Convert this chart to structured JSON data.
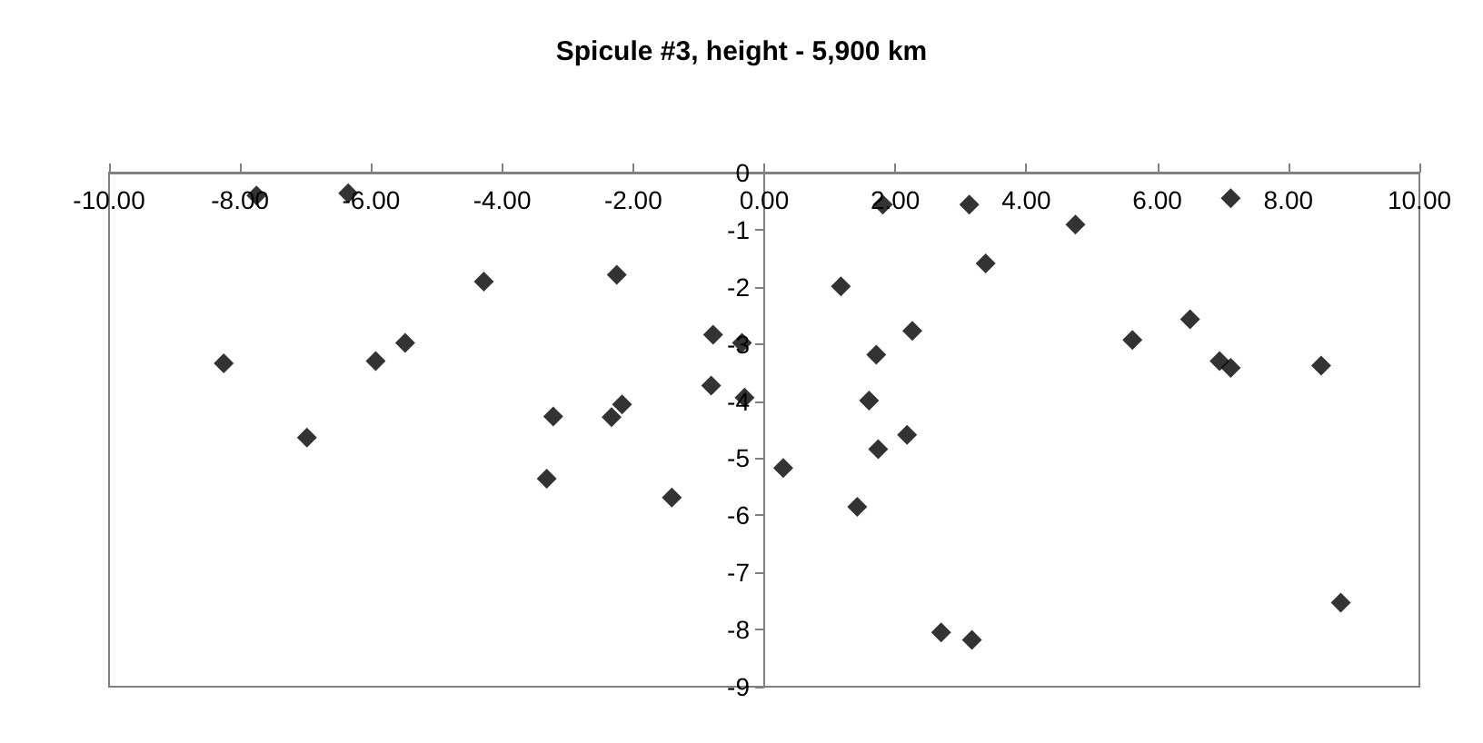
{
  "chart_data": {
    "type": "scatter",
    "title": "Spicule #3, height - 5,900 km",
    "x": [
      -7.75,
      -6.35,
      -4.28,
      -2.25,
      -8.25,
      -5.93,
      -5.48,
      -6.98,
      -3.22,
      -2.33,
      -2.17,
      -3.32,
      -1.41,
      -0.78,
      -0.34,
      -0.81,
      -0.3,
      1.81,
      3.13,
      7.12,
      4.75,
      3.38,
      1.17,
      2.26,
      6.5,
      5.62,
      1.71,
      6.95,
      7.12,
      8.5,
      1.6,
      2.18,
      1.74,
      0.29,
      1.42,
      2.7,
      3.17,
      8.8
    ],
    "series": [
      {
        "color": "#000000",
        "values": [
          -0.4,
          -0.36,
          -1.91,
          -1.79,
          -3.34,
          -3.3,
          -2.98,
          -4.64,
          -4.27,
          -4.28,
          -4.06,
          -5.36,
          -5.69,
          -2.84,
          -2.98,
          -3.73,
          -3.94,
          -0.56,
          -0.56,
          -0.45,
          -0.91,
          -1.59,
          -1.99,
          -2.77,
          -2.57,
          -2.93,
          -3.19,
          -3.3,
          -3.42,
          -3.38,
          -3.99,
          -4.59,
          -4.84,
          -5.17,
          -5.85,
          -8.05,
          -8.18,
          -7.53
        ]
      }
    ],
    "xlim": [
      -10,
      10
    ],
    "xticks": [
      {
        "value": -10,
        "label": "-10.00"
      },
      {
        "value": -8,
        "label": "-8.00"
      },
      {
        "value": -6,
        "label": "-6.00"
      },
      {
        "value": -4,
        "label": "-4.00"
      },
      {
        "value": -2,
        "label": "-2.00"
      },
      {
        "value": 0,
        "label": "0.00"
      },
      {
        "value": 2,
        "label": "2.00"
      },
      {
        "value": 4,
        "label": "4.00"
      },
      {
        "value": 6,
        "label": "6.00"
      },
      {
        "value": 8,
        "label": "8.00"
      },
      {
        "value": 10,
        "label": "10.00"
      }
    ],
    "ylim": [
      -9,
      0
    ],
    "yticks": [
      0,
      -1,
      -2,
      -3,
      -4,
      -5,
      -6,
      -7,
      -8,
      -9
    ],
    "grid": false,
    "marker": "diamond"
  }
}
